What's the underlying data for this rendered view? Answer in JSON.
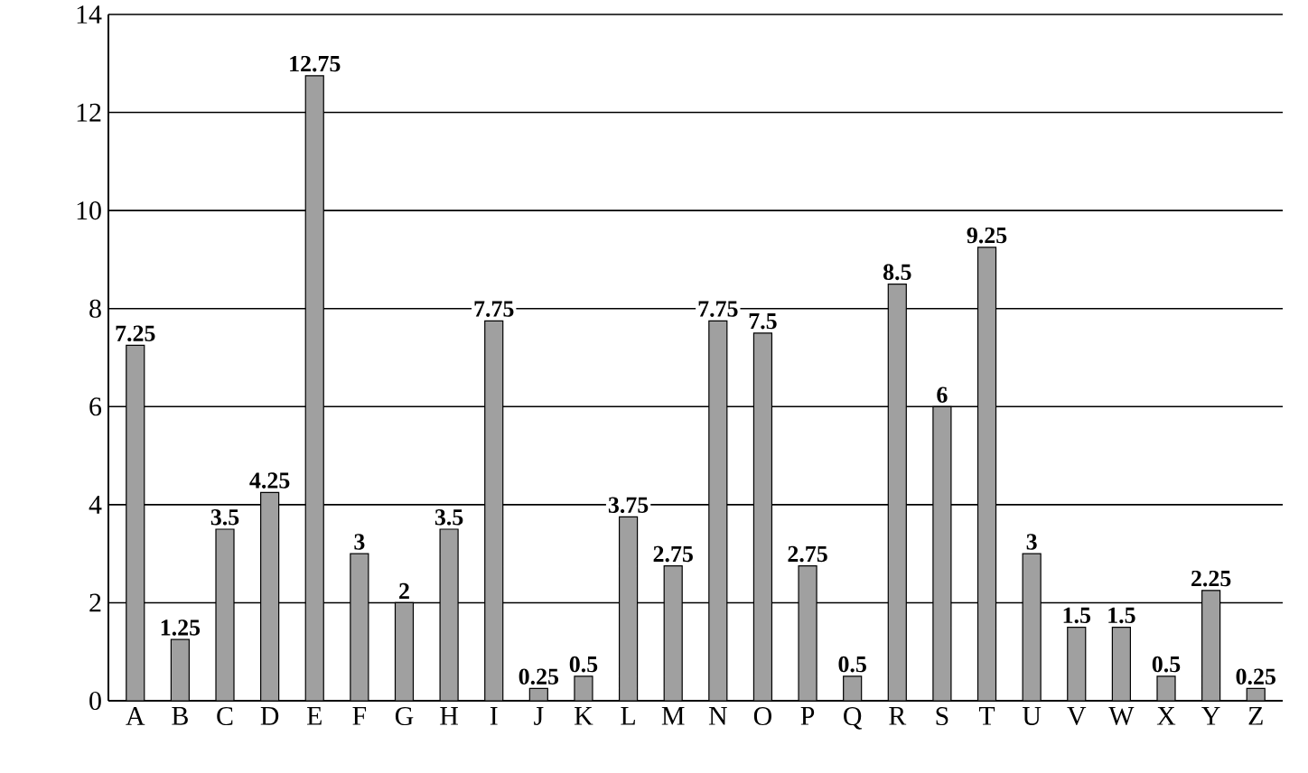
{
  "chart_data": {
    "type": "bar",
    "categories": [
      "A",
      "B",
      "C",
      "D",
      "E",
      "F",
      "G",
      "H",
      "I",
      "J",
      "K",
      "L",
      "M",
      "N",
      "O",
      "P",
      "Q",
      "R",
      "S",
      "T",
      "U",
      "V",
      "W",
      "X",
      "Y",
      "Z"
    ],
    "values": [
      7.25,
      1.25,
      3.5,
      4.25,
      12.75,
      3,
      2,
      3.5,
      7.75,
      0.25,
      0.5,
      3.75,
      2.75,
      7.75,
      7.5,
      2.75,
      0.5,
      8.5,
      6,
      9.25,
      3,
      1.5,
      1.5,
      0.5,
      2.25,
      0.25
    ],
    "color": "#a0a0a0",
    "ylim": [
      0,
      14
    ],
    "yticks": [
      0,
      2,
      4,
      6,
      8,
      10,
      12,
      14
    ],
    "grid": "y",
    "data_labels": true
  }
}
